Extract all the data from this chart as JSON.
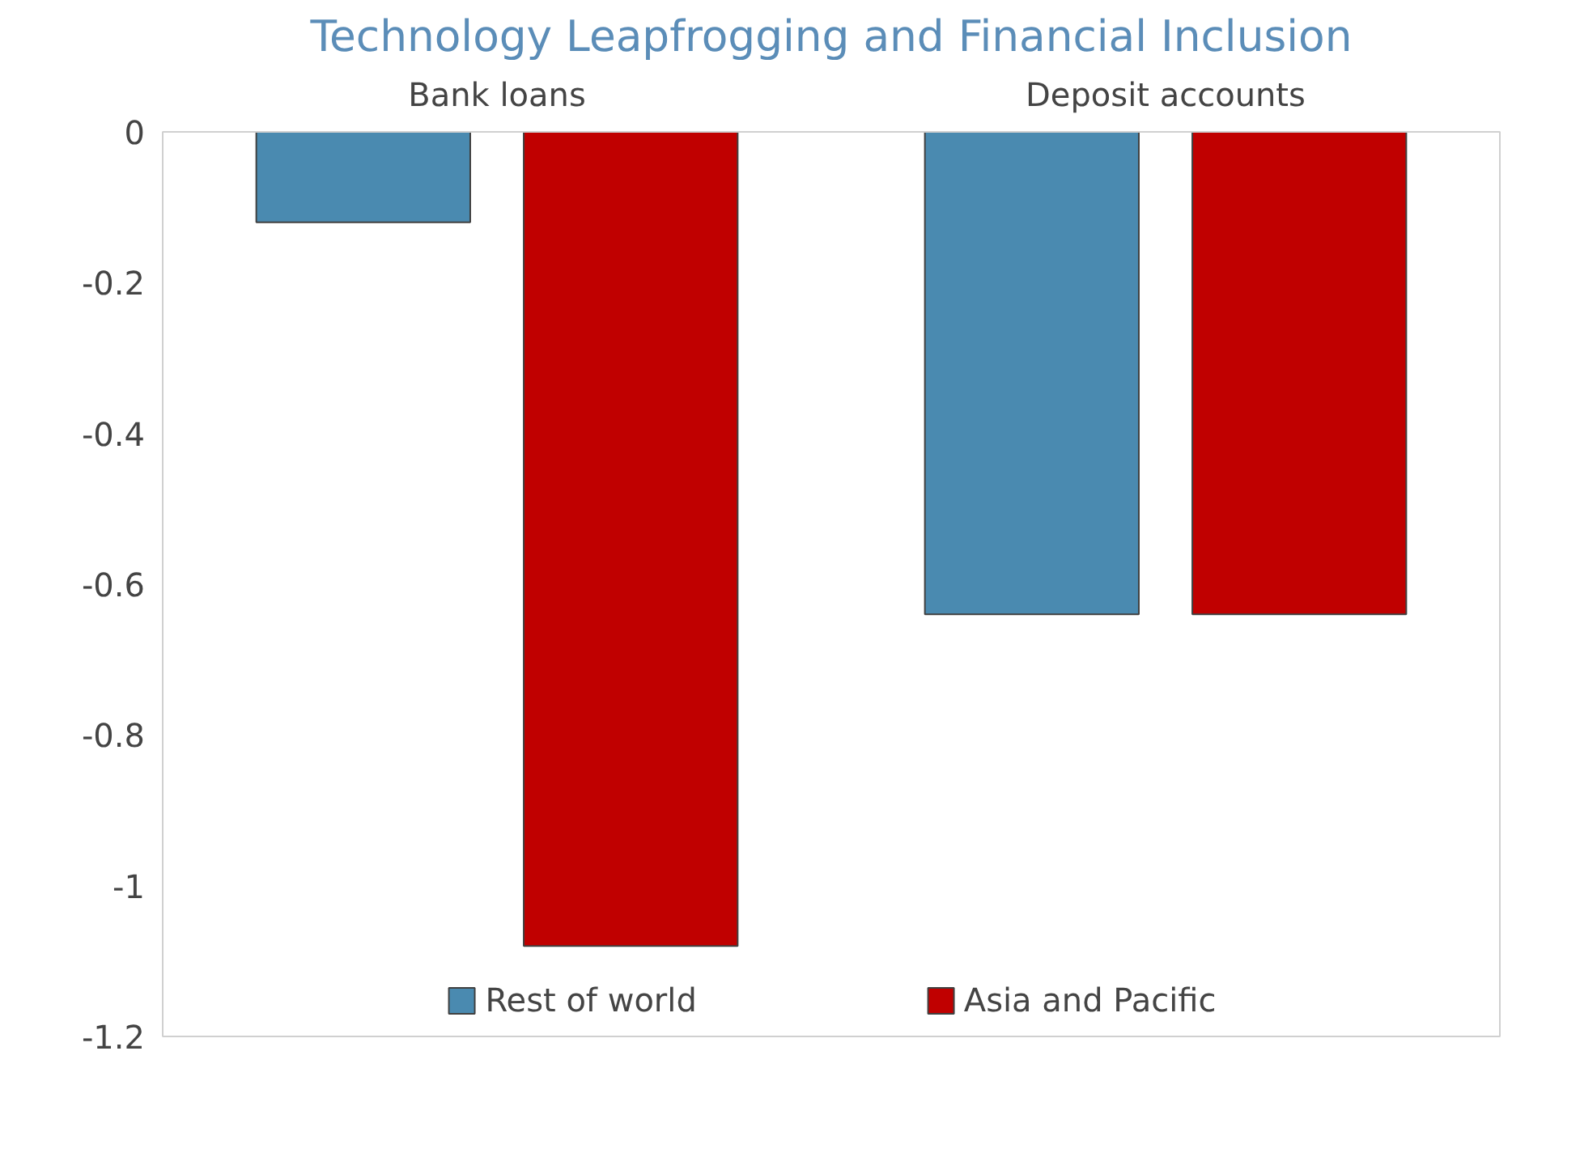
{
  "chart_data": {
    "type": "bar",
    "title": "Technology Leapfrogging and Financial Inclusion",
    "categories": [
      "Bank loans",
      "Deposit accounts"
    ],
    "series": [
      {
        "name": "Rest of world",
        "color": "#4a8ab0",
        "values": [
          -0.12,
          -0.64
        ]
      },
      {
        "name": "Asia and Pacific",
        "color": "#c00000",
        "values": [
          -1.08,
          -0.64
        ]
      }
    ],
    "ylim": [
      -1.2,
      0
    ],
    "yticks": [
      0,
      -0.2,
      -0.4,
      -0.6,
      -0.8,
      -1,
      -1.2
    ],
    "grid": false,
    "legend": "bottom"
  }
}
